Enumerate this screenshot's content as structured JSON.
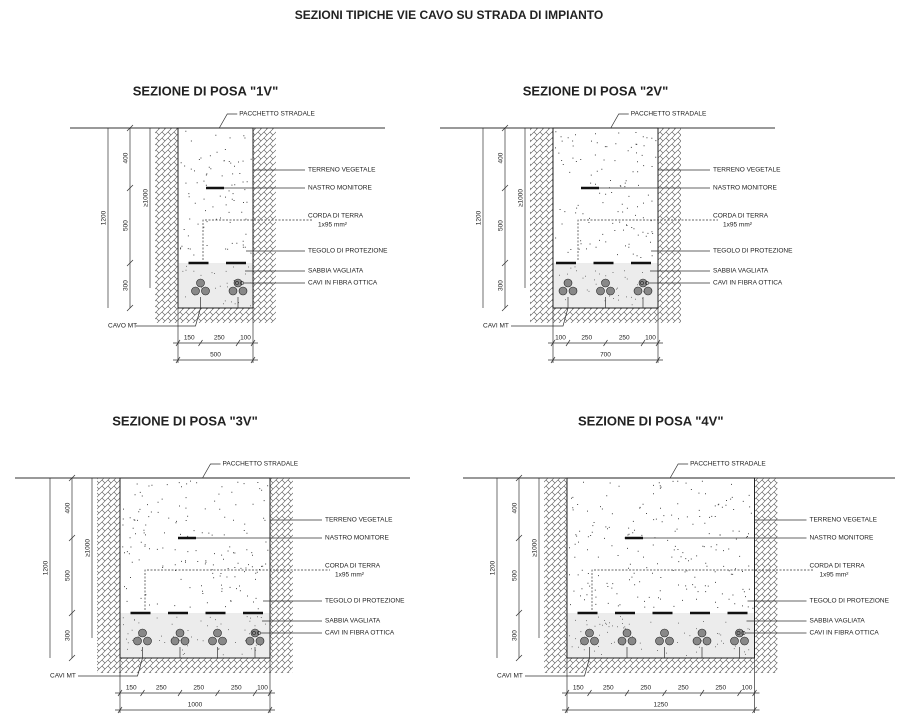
{
  "title": "SEZIONI TIPICHE VIE CAVO SU STRADA DI IMPIANTO",
  "sections": [
    {
      "title": "SEZIONE DI POSA \"1V\"",
      "road": "PACCHETTO STRADALE",
      "soil": "TERRENO VEGETALE",
      "tape": "NASTRO MONITORE",
      "earth": "CORDA DI TERRA",
      "earth_size": "1x95 mm²",
      "tile": "TEGOLO DI PROTEZIONE",
      "sand": "SABBIA VAGLIATA",
      "fiber": "CAVI IN FIBRA OTTICA",
      "cable": "CAVO MT",
      "depths": [
        "400",
        "500",
        "300"
      ],
      "total_depth": "1200",
      "min_depth": "≥1000",
      "widths": [
        "150",
        "250",
        "100"
      ],
      "total_width": "500"
    },
    {
      "title": "SEZIONE DI POSA \"2V\"",
      "road": "PACCHETTO STRADALE",
      "soil": "TERRENO VEGETALE",
      "tape": "NASTRO MONITORE",
      "earth": "CORDA DI TERRA",
      "earth_size": "1x95 mm²",
      "tile": "TEGOLO DI PROTEZIONE",
      "sand": "SABBIA VAGLIATA",
      "fiber": "CAVI IN FIBRA OTTICA",
      "cable": "CAVI MT",
      "depths": [
        "400",
        "500",
        "300"
      ],
      "total_depth": "1200",
      "min_depth": "≥1000",
      "widths": [
        "100",
        "250",
        "250",
        "100"
      ],
      "total_width": "700"
    },
    {
      "title": "SEZIONE DI POSA \"3V\"",
      "road": "PACCHETTO STRADALE",
      "soil": "TERRENO VEGETALE",
      "tape": "NASTRO MONITORE",
      "earth": "CORDA DI TERRA",
      "earth_size": "1x95 mm²",
      "tile": "TEGOLO DI PROTEZIONE",
      "sand": "SABBIA VAGLIATA",
      "fiber": "CAVI IN FIBRA OTTICA",
      "cable": "CAVI MT",
      "depths": [
        "400",
        "500",
        "300"
      ],
      "total_depth": "1200",
      "min_depth": "≥1000",
      "widths": [
        "150",
        "250",
        "250",
        "250",
        "100"
      ],
      "total_width": "1000"
    },
    {
      "title": "SEZIONE DI POSA \"4V\"",
      "road": "PACCHETTO STRADALE",
      "soil": "TERRENO VEGETALE",
      "tape": "NASTRO MONITORE",
      "earth": "CORDA DI TERRA",
      "earth_size": "1x95 mm²",
      "tile": "TEGOLO DI PROTEZIONE",
      "sand": "SABBIA VAGLIATA",
      "fiber": "CAVI IN FIBRA OTTICA",
      "cable": "CAVI MT",
      "depths": [
        "400",
        "500",
        "300"
      ],
      "total_depth": "1200",
      "min_depth": "≥1000",
      "widths": [
        "150",
        "250",
        "250",
        "250",
        "250",
        "100"
      ],
      "total_width": "1250"
    }
  ]
}
